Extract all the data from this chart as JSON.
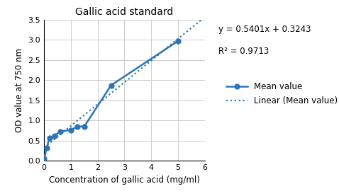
{
  "title": "Gallic acid standard",
  "xlabel": "Concentration of gallic acid (mg/ml)",
  "ylabel": "OD value at 750 nm",
  "x_data": [
    0.0,
    0.1,
    0.2,
    0.4,
    0.6,
    1.0,
    1.25,
    1.5,
    2.5,
    5.0
  ],
  "y_data": [
    0.05,
    0.32,
    0.57,
    0.62,
    0.73,
    0.76,
    0.85,
    0.85,
    1.87,
    2.97
  ],
  "line_color": "#2E75B6",
  "linear_slope": 0.5401,
  "linear_intercept": 0.3243,
  "xlim": [
    0,
    6
  ],
  "ylim": [
    0,
    3.5
  ],
  "yticks": [
    0,
    0.5,
    1.0,
    1.5,
    2.0,
    2.5,
    3.0,
    3.5
  ],
  "xticks": [
    0,
    1,
    2,
    3,
    4,
    5,
    6
  ],
  "equation_text": "y = 0.5401x + 0.3243",
  "r2_text": "R² = 0.9713",
  "legend_mean": "Mean value",
  "legend_linear": "Linear (Mean value)",
  "grid_color": "#cccccc",
  "background_color": "#ffffff"
}
